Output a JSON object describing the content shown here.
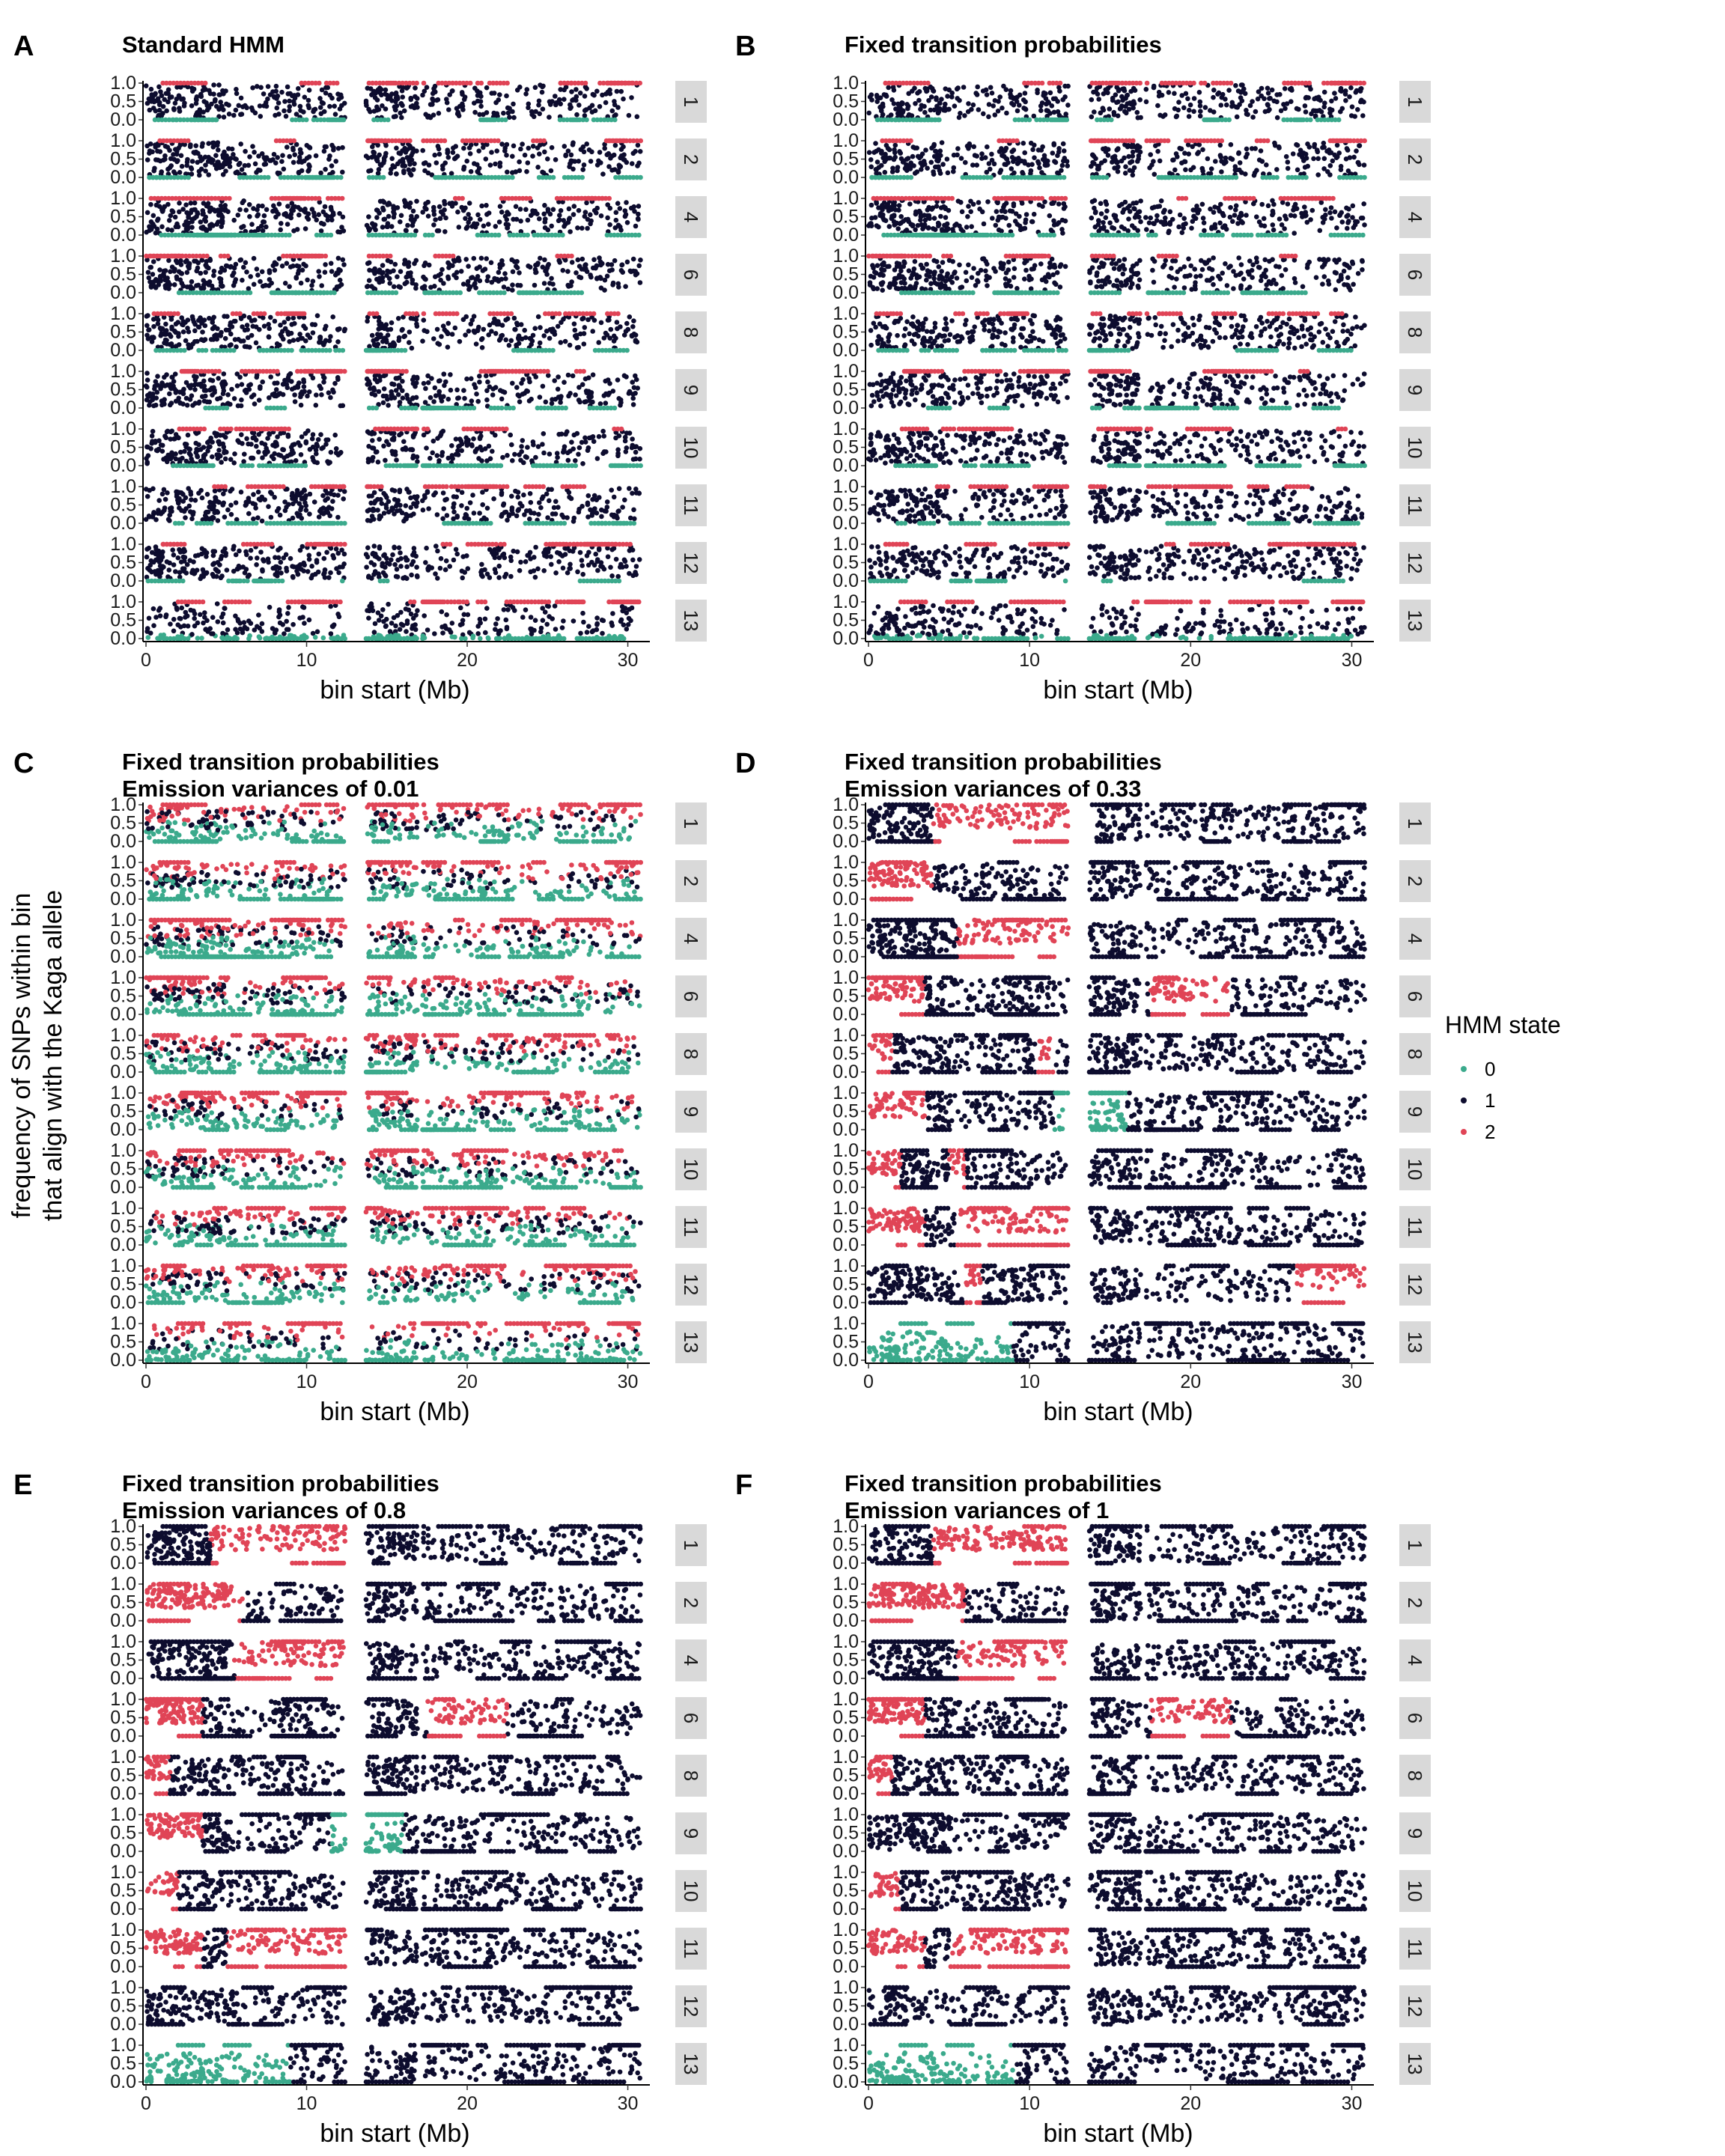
{
  "figure": {
    "y_axis_title_line1": "frequency of SNPs within bin",
    "y_axis_title_line2": "that align with the Kaga allele"
  },
  "legend": {
    "title": "HMM state",
    "items": [
      {
        "label": "0",
        "color": "#3BAA8C"
      },
      {
        "label": "1",
        "color": "#0D0C2E"
      },
      {
        "label": "2",
        "color": "#E04456"
      }
    ]
  },
  "chart_data": [
    {
      "type": "scatter",
      "panel": "A",
      "title_lines": [
        "Standard HMM"
      ],
      "xlabel": "bin start (Mb)",
      "xlim": [
        0,
        31
      ],
      "xticks": [
        0,
        10,
        20,
        30
      ],
      "ylim": [
        0,
        1
      ],
      "yticks": [
        "0.0",
        "0.5",
        "1.0"
      ],
      "facets": [
        "1",
        "2",
        "4",
        "6",
        "8",
        "9",
        "10",
        "11",
        "12",
        "13"
      ],
      "regime": "standard"
    },
    {
      "type": "scatter",
      "panel": "B",
      "title_lines": [
        "Fixed transition probabilities"
      ],
      "xlabel": "bin start (Mb)",
      "xlim": [
        0,
        31
      ],
      "xticks": [
        0,
        10,
        20,
        30
      ],
      "ylim": [
        0,
        1
      ],
      "yticks": [
        "0.0",
        "0.5",
        "1.0"
      ],
      "facets": [
        "1",
        "2",
        "4",
        "6",
        "8",
        "9",
        "10",
        "11",
        "12",
        "13"
      ],
      "regime": "standard"
    },
    {
      "type": "scatter",
      "panel": "C",
      "title_lines": [
        "Fixed transition probabilities",
        "Emission variances of 0.01"
      ],
      "xlabel": "bin start (Mb)",
      "xlim": [
        0,
        31
      ],
      "xticks": [
        0,
        10,
        20,
        30
      ],
      "ylim": [
        0,
        1
      ],
      "yticks": [
        "0.0",
        "0.5",
        "1.0"
      ],
      "facets": [
        "1",
        "2",
        "4",
        "6",
        "8",
        "9",
        "10",
        "11",
        "12",
        "13"
      ],
      "regime": "low_variance"
    },
    {
      "type": "scatter",
      "panel": "D",
      "title_lines": [
        "Fixed transition probabilities",
        "Emission variances of 0.33"
      ],
      "xlabel": "bin start (Mb)",
      "xlim": [
        0,
        31
      ],
      "xticks": [
        0,
        10,
        20,
        30
      ],
      "ylim": [
        0,
        1
      ],
      "yticks": [
        "0.0",
        "0.5",
        "1.0"
      ],
      "facets": [
        "1",
        "2",
        "4",
        "6",
        "8",
        "9",
        "10",
        "11",
        "12",
        "13"
      ],
      "regime": "segments",
      "state_segments": {
        "1": [
          [
            0,
            4,
            1
          ],
          [
            4,
            12.5,
            2
          ],
          [
            12.5,
            31,
            1
          ]
        ],
        "2": [
          [
            0,
            4,
            2
          ],
          [
            4,
            31,
            1
          ]
        ],
        "4": [
          [
            0,
            5.5,
            1
          ],
          [
            5.5,
            12.5,
            2
          ],
          [
            12.5,
            31,
            1
          ]
        ],
        "6": [
          [
            0,
            3.5,
            2
          ],
          [
            3.5,
            17.5,
            1
          ],
          [
            17.5,
            22.5,
            2
          ],
          [
            22.5,
            31,
            1
          ]
        ],
        "8": [
          [
            0,
            1.5,
            2
          ],
          [
            1.5,
            10.5,
            1
          ],
          [
            10.5,
            11.5,
            2
          ],
          [
            11.5,
            31,
            1
          ]
        ],
        "9": [
          [
            0,
            3.5,
            2
          ],
          [
            3.5,
            11.5,
            1
          ],
          [
            11.5,
            16,
            0
          ],
          [
            16,
            31,
            1
          ]
        ],
        "10": [
          [
            0,
            2,
            2
          ],
          [
            2,
            5,
            1
          ],
          [
            5,
            6,
            2
          ],
          [
            6,
            31,
            1
          ]
        ],
        "11": [
          [
            0,
            3.5,
            2
          ],
          [
            3.5,
            5.5,
            1
          ],
          [
            5.5,
            12.5,
            2
          ],
          [
            12.5,
            31,
            1
          ]
        ],
        "12": [
          [
            0,
            6,
            1
          ],
          [
            6,
            7,
            2
          ],
          [
            7,
            26.5,
            1
          ],
          [
            26.5,
            31,
            2
          ]
        ],
        "13": [
          [
            0,
            9,
            0
          ],
          [
            9,
            31,
            1
          ]
        ]
      }
    },
    {
      "type": "scatter",
      "panel": "E",
      "title_lines": [
        "Fixed transition probabilities",
        "Emission variances of 0.8"
      ],
      "xlabel": "bin start (Mb)",
      "xlim": [
        0,
        31
      ],
      "xticks": [
        0,
        10,
        20,
        30
      ],
      "ylim": [
        0,
        1
      ],
      "yticks": [
        "0.0",
        "0.5",
        "1.0"
      ],
      "facets": [
        "1",
        "2",
        "4",
        "6",
        "8",
        "9",
        "10",
        "11",
        "12",
        "13"
      ],
      "regime": "segments",
      "state_segments": {
        "1": [
          [
            0,
            4,
            1
          ],
          [
            4,
            12.5,
            2
          ],
          [
            12.5,
            31,
            1
          ]
        ],
        "2": [
          [
            0,
            6,
            2
          ],
          [
            6,
            31,
            1
          ]
        ],
        "4": [
          [
            0,
            5.5,
            1
          ],
          [
            5.5,
            12.5,
            2
          ],
          [
            12.5,
            31,
            1
          ]
        ],
        "6": [
          [
            0,
            3.5,
            2
          ],
          [
            3.5,
            17.5,
            1
          ],
          [
            17.5,
            22.5,
            2
          ],
          [
            22.5,
            31,
            1
          ]
        ],
        "8": [
          [
            0,
            1.5,
            2
          ],
          [
            1.5,
            31,
            1
          ]
        ],
        "9": [
          [
            0,
            3.5,
            2
          ],
          [
            3.5,
            11.5,
            1
          ],
          [
            11.5,
            16,
            0
          ],
          [
            16,
            31,
            1
          ]
        ],
        "10": [
          [
            0,
            2,
            2
          ],
          [
            2,
            31,
            1
          ]
        ],
        "11": [
          [
            0,
            3.5,
            2
          ],
          [
            3.5,
            5,
            1
          ],
          [
            5,
            12.5,
            2
          ],
          [
            12.5,
            31,
            1
          ]
        ],
        "12": [
          [
            0,
            31,
            1
          ]
        ],
        "13": [
          [
            0,
            9,
            0
          ],
          [
            9,
            31,
            1
          ]
        ]
      }
    },
    {
      "type": "scatter",
      "panel": "F",
      "title_lines": [
        "Fixed transition probabilities",
        "Emission variances of 1"
      ],
      "xlabel": "bin start (Mb)",
      "xlim": [
        0,
        31
      ],
      "xticks": [
        0,
        10,
        20,
        30
      ],
      "ylim": [
        0,
        1
      ],
      "yticks": [
        "0.0",
        "0.5",
        "1.0"
      ],
      "facets": [
        "1",
        "2",
        "4",
        "6",
        "8",
        "9",
        "10",
        "11",
        "12",
        "13"
      ],
      "regime": "segments",
      "state_segments": {
        "1": [
          [
            0,
            4,
            1
          ],
          [
            4,
            12.5,
            2
          ],
          [
            12.5,
            31,
            1
          ]
        ],
        "2": [
          [
            0,
            6,
            2
          ],
          [
            6,
            31,
            1
          ]
        ],
        "4": [
          [
            0,
            5.5,
            1
          ],
          [
            5.5,
            12.5,
            2
          ],
          [
            12.5,
            31,
            1
          ]
        ],
        "6": [
          [
            0,
            3.5,
            2
          ],
          [
            3.5,
            17.5,
            1
          ],
          [
            17.5,
            22.5,
            2
          ],
          [
            22.5,
            31,
            1
          ]
        ],
        "8": [
          [
            0,
            1.5,
            2
          ],
          [
            1.5,
            31,
            1
          ]
        ],
        "9": [
          [
            0,
            31,
            1
          ]
        ],
        "10": [
          [
            0,
            2,
            2
          ],
          [
            2,
            31,
            1
          ]
        ],
        "11": [
          [
            0,
            3.5,
            2
          ],
          [
            3.5,
            5,
            1
          ],
          [
            5,
            12.5,
            2
          ],
          [
            12.5,
            31,
            1
          ]
        ],
        "12": [
          [
            0,
            31,
            1
          ]
        ],
        "13": [
          [
            0,
            9,
            0
          ],
          [
            9,
            31,
            1
          ]
        ]
      }
    }
  ]
}
